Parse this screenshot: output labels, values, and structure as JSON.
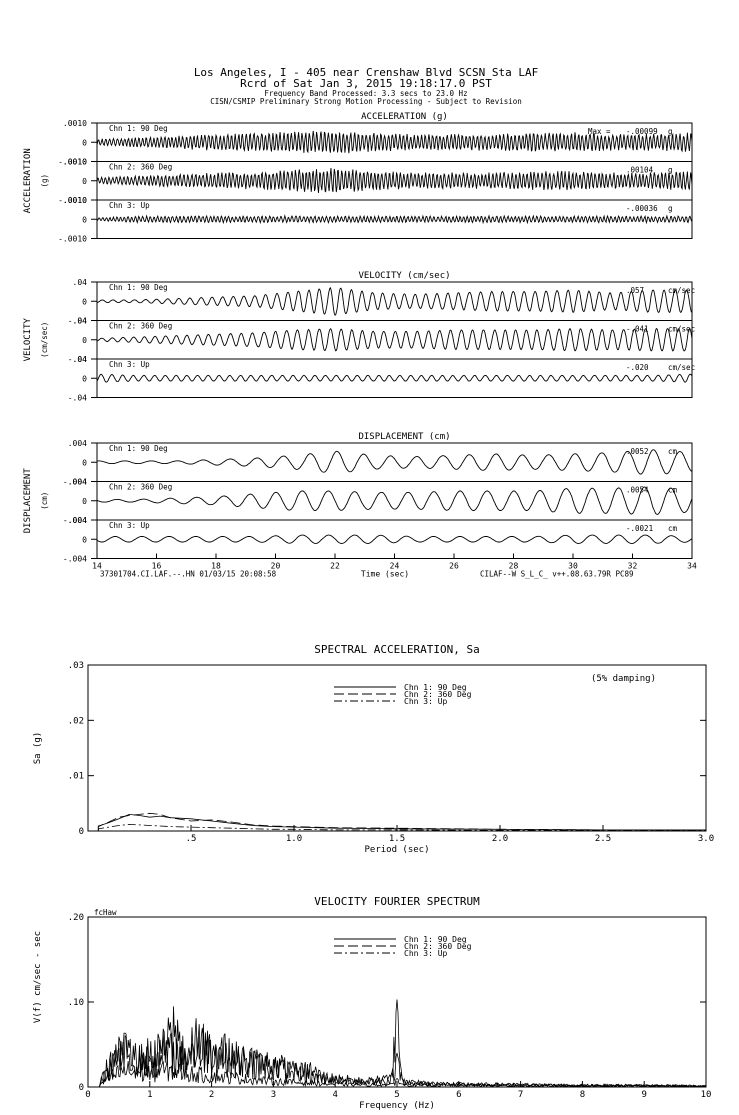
{
  "header": {
    "line1": "Los Angeles, I - 405 near Crenshaw Blvd    SCSN Sta LAF",
    "line2": "Rcrd of Sat Jan  3, 2015 19:18:17.0 PST",
    "line3": "Frequency Band Processed: 3.3 secs to 23.0 Hz",
    "line4": "CISN/CSMIP Preliminary Strong Motion Processing - Subject to Revision"
  },
  "time_series": {
    "xlabel": "Time (sec)",
    "x_ticks": [
      "14",
      "16",
      "18",
      "20",
      "22",
      "24",
      "26",
      "28",
      "30",
      "32",
      "34"
    ],
    "xlim": [
      14,
      34
    ],
    "footer_left": "37301704.CI.LAF.--.HN 01/03/15 20:08:58",
    "footer_right": "CILAF--W  S_L_C_  v++.08.63.79R PC89",
    "panels": [
      {
        "title": "ACCELERATION (g)",
        "side_label": "ACCELERATION",
        "unit_label": "(g)",
        "ytick_top": ".0010",
        "ytick_zero": "0",
        "ytick_bottom": "-.0010",
        "channels": [
          {
            "name": "Chn 1: 90 Deg",
            "max_prefix": "Max =",
            "max": "-.00099",
            "unit": "g",
            "amp": 0.001,
            "envelope": [
              2,
              3,
              4,
              5,
              6,
              7,
              7,
              6,
              5,
              5,
              5,
              6,
              6,
              5,
              5,
              6
            ]
          },
          {
            "name": "Chn 2: 360 Deg",
            "max_prefix": "",
            "max": ".00104",
            "unit": "g",
            "amp": 0.001,
            "envelope": [
              2,
              3,
              4,
              5,
              5,
              7,
              8,
              6,
              5,
              5,
              5,
              6,
              6,
              5,
              5,
              6
            ]
          },
          {
            "name": "Chn 3: Up",
            "max_prefix": "",
            "max": "-.00036",
            "unit": "g",
            "amp": 0.001,
            "envelope": [
              1,
              2,
              2,
              2,
              2,
              2,
              2,
              2,
              2,
              2,
              2,
              2,
              2,
              2,
              2,
              2
            ]
          }
        ]
      },
      {
        "title": "VELOCITY (cm/sec)",
        "side_label": "VELOCITY",
        "unit_label": "(cm/sec)",
        "ytick_top": ".04",
        "ytick_zero": "0",
        "ytick_bottom": "-.04",
        "channels": [
          {
            "name": "Chn 1: 90 Deg",
            "max_prefix": "",
            "max": ".057",
            "unit": "cm/sec",
            "amp": 0.04,
            "envelope": [
              1,
              1,
              2,
              3,
              4,
              7,
              10,
              6,
              5,
              6,
              7,
              7,
              8,
              6,
              8,
              8
            ]
          },
          {
            "name": "Chn 2: 360 Deg",
            "max_prefix": "",
            "max": "-.041",
            "unit": "cm/sec",
            "amp": 0.04,
            "envelope": [
              1,
              2,
              3,
              4,
              5,
              7,
              8,
              6,
              6,
              7,
              7,
              7,
              8,
              7,
              8,
              8
            ]
          },
          {
            "name": "Chn 3: Up",
            "max_prefix": "",
            "max": "-.020",
            "unit": "cm/sec",
            "amp": 0.04,
            "envelope": [
              3,
              2,
              2,
              2,
              2,
              2,
              2,
              2,
              2,
              2,
              2,
              2,
              2,
              2,
              2,
              3
            ]
          }
        ]
      },
      {
        "title": "DISPLACEMENT (cm)",
        "side_label": "DISPLACEMENT",
        "unit_label": "(cm)",
        "ytick_top": ".004",
        "ytick_zero": "0",
        "ytick_bottom": "-.004",
        "channels": [
          {
            "name": "Chn 1: 90 Deg",
            "max_prefix": "",
            "max": ".0052",
            "unit": "cm",
            "amp": 0.004,
            "envelope": [
              1,
              1,
              1,
              2,
              3,
              5,
              8,
              5,
              4,
              5,
              6,
              5,
              6,
              7,
              9,
              7
            ]
          },
          {
            "name": "Chn 2: 360 Deg",
            "max_prefix": "",
            "max": ".0054",
            "unit": "cm",
            "amp": 0.004,
            "envelope": [
              1,
              1,
              2,
              3,
              5,
              7,
              7,
              6,
              6,
              7,
              7,
              7,
              9,
              9,
              10,
              8
            ]
          },
          {
            "name": "Chn 3: Up",
            "max_prefix": "",
            "max": "-.0021",
            "unit": "cm",
            "amp": 0.004,
            "envelope": [
              2,
              2,
              2,
              2,
              2,
              3,
              3,
              3,
              2,
              2,
              2,
              2,
              3,
              3,
              3,
              2
            ]
          }
        ]
      }
    ]
  },
  "chart_data": [
    {
      "type": "line",
      "title": "SPECTRAL ACCELERATION, Sa",
      "annotation": "(5% damping)",
      "xlabel": "Period (sec)",
      "ylabel": "Sa (g)",
      "xlim": [
        0,
        3.0
      ],
      "ylim": [
        0,
        0.03
      ],
      "x_ticks": [
        ".5",
        "1.0",
        "1.5",
        "2.0",
        "2.5",
        "3.0"
      ],
      "y_ticks": [
        "0",
        ".01",
        ".02",
        ".03"
      ],
      "legend_position": "top-center",
      "x": [
        0.05,
        0.1,
        0.15,
        0.2,
        0.25,
        0.3,
        0.35,
        0.4,
        0.5,
        0.6,
        0.7,
        0.8,
        0.9,
        1.0,
        1.2,
        1.5,
        2.0,
        2.5,
        3.0
      ],
      "series": [
        {
          "name": "Chn 1: 90 Deg",
          "style": "solid",
          "values": [
            0.0009,
            0.0015,
            0.0022,
            0.003,
            0.0028,
            0.0025,
            0.0027,
            0.0024,
            0.0022,
            0.0018,
            0.0014,
            0.001,
            0.0008,
            0.0007,
            0.0005,
            0.0004,
            0.0003,
            0.0002,
            0.0002
          ]
        },
        {
          "name": "Chn 2: 360 Deg",
          "style": "dashed",
          "values": [
            0.0008,
            0.0016,
            0.0025,
            0.0028,
            0.003,
            0.0032,
            0.003,
            0.0024,
            0.0018,
            0.002,
            0.0016,
            0.0011,
            0.0009,
            0.0008,
            0.0006,
            0.0005,
            0.0003,
            0.0002,
            0.0002
          ]
        },
        {
          "name": "Chn 3: Up",
          "style": "dashdot",
          "values": [
            0.0004,
            0.0007,
            0.001,
            0.0012,
            0.0011,
            0.001,
            0.0009,
            0.0008,
            0.0007,
            0.0006,
            0.0005,
            0.0004,
            0.0003,
            0.0003,
            0.0002,
            0.0002,
            0.0001,
            0.0001,
            0.0001
          ]
        }
      ]
    },
    {
      "type": "line",
      "title": "VELOCITY FOURIER SPECTRUM",
      "corner_label": "fcHaw",
      "xlabel": "Frequency (Hz)",
      "ylabel": "V(f)   cm/sec - sec",
      "xlim": [
        0,
        10
      ],
      "ylim": [
        0,
        0.2
      ],
      "x_ticks": [
        "0",
        "1",
        "2",
        "3",
        "4",
        "5",
        "6",
        "7",
        "8",
        "9",
        "10"
      ],
      "y_ticks": [
        "0",
        ".10",
        ".20"
      ],
      "legend_position": "top-center",
      "x": [
        0.2,
        0.4,
        0.6,
        0.8,
        1.0,
        1.2,
        1.4,
        1.6,
        1.8,
        2.0,
        2.2,
        2.4,
        2.6,
        2.8,
        3.0,
        3.2,
        3.4,
        3.6,
        3.8,
        4.0,
        4.5,
        4.9,
        5.0,
        5.1,
        5.5,
        6.0,
        7.0,
        8.0,
        9.0,
        10.0
      ],
      "series": [
        {
          "name": "Chn 1: 90 Deg",
          "style": "solid",
          "values": [
            0.01,
            0.05,
            0.06,
            0.045,
            0.055,
            0.06,
            0.1,
            0.05,
            0.085,
            0.05,
            0.06,
            0.045,
            0.05,
            0.04,
            0.045,
            0.03,
            0.025,
            0.03,
            0.018,
            0.015,
            0.01,
            0.015,
            0.103,
            0.01,
            0.006,
            0.005,
            0.004,
            0.003,
            0.003,
            0.002
          ]
        },
        {
          "name": "Chn 2: 360 Deg",
          "style": "dashed",
          "values": [
            0.01,
            0.04,
            0.065,
            0.05,
            0.05,
            0.06,
            0.06,
            0.055,
            0.07,
            0.065,
            0.055,
            0.05,
            0.045,
            0.04,
            0.035,
            0.032,
            0.025,
            0.02,
            0.015,
            0.012,
            0.01,
            0.012,
            0.04,
            0.01,
            0.006,
            0.005,
            0.004,
            0.003,
            0.003,
            0.002
          ]
        },
        {
          "name": "Chn 3: Up",
          "style": "dashdot",
          "values": [
            0.005,
            0.02,
            0.03,
            0.025,
            0.025,
            0.03,
            0.028,
            0.025,
            0.022,
            0.02,
            0.018,
            0.016,
            0.014,
            0.012,
            0.01,
            0.009,
            0.008,
            0.007,
            0.006,
            0.005,
            0.004,
            0.004,
            0.01,
            0.004,
            0.003,
            0.003,
            0.002,
            0.002,
            0.002,
            0.001
          ]
        }
      ]
    }
  ]
}
